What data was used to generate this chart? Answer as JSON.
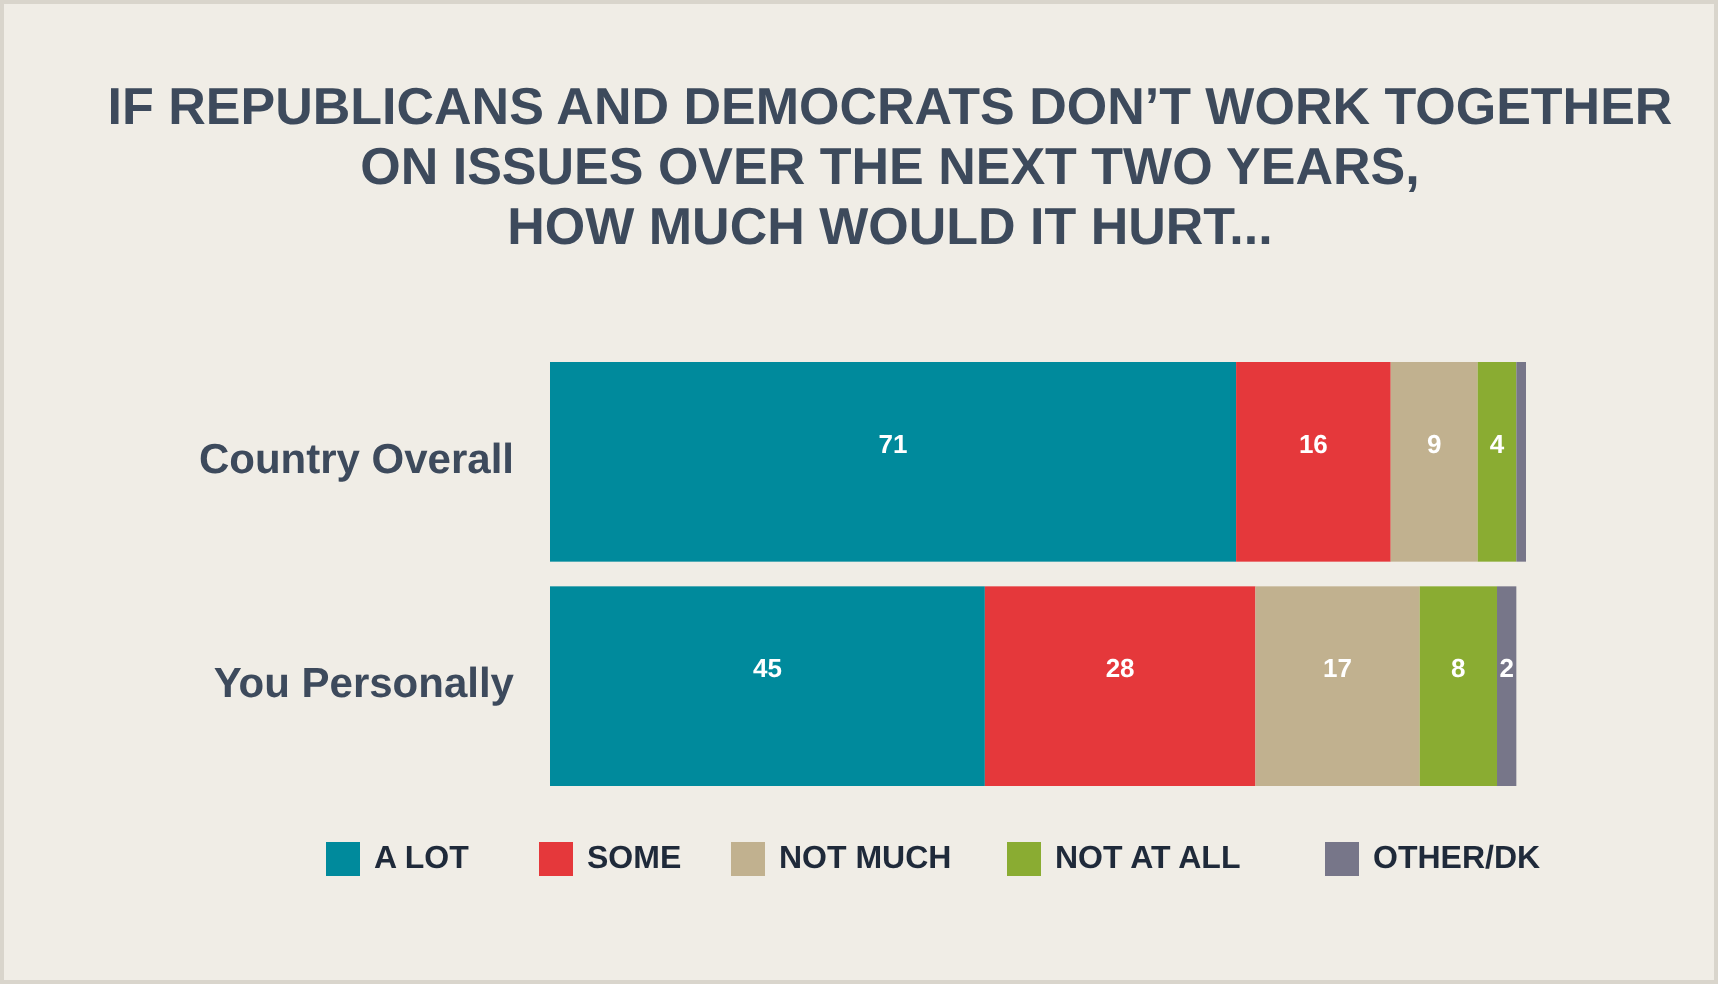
{
  "chart_data": {
    "type": "bar",
    "orientation": "horizontal",
    "stacked": true,
    "title": "IF REPUBLICANS AND DEMOCRATS DON’T WORK TOGETHER\nON ISSUES OVER THE NEXT TWO YEARS,\nHOW MUCH WOULD IT HURT...",
    "categories": [
      "Country Overall",
      "You Personally"
    ],
    "series": [
      {
        "name": "A LOT",
        "color": "#008a9c",
        "values": [
          71,
          45
        ],
        "value_labels": [
          "71",
          "45"
        ]
      },
      {
        "name": "SOME",
        "color": "#e5383b",
        "values": [
          16,
          28
        ],
        "value_labels": [
          "16",
          "28"
        ]
      },
      {
        "name": "NOT MUCH",
        "color": "#c1b18f",
        "values": [
          9,
          17
        ],
        "value_labels": [
          "9",
          "17"
        ]
      },
      {
        "name": "NOT AT ALL",
        "color": "#8aac32",
        "values": [
          4,
          8
        ],
        "value_labels": [
          "4",
          "8"
        ]
      },
      {
        "name": "OTHER/DK",
        "color": "#777689",
        "values": [
          1,
          2
        ],
        "value_labels": [
          null,
          "2"
        ]
      }
    ],
    "legend": "bottom"
  }
}
